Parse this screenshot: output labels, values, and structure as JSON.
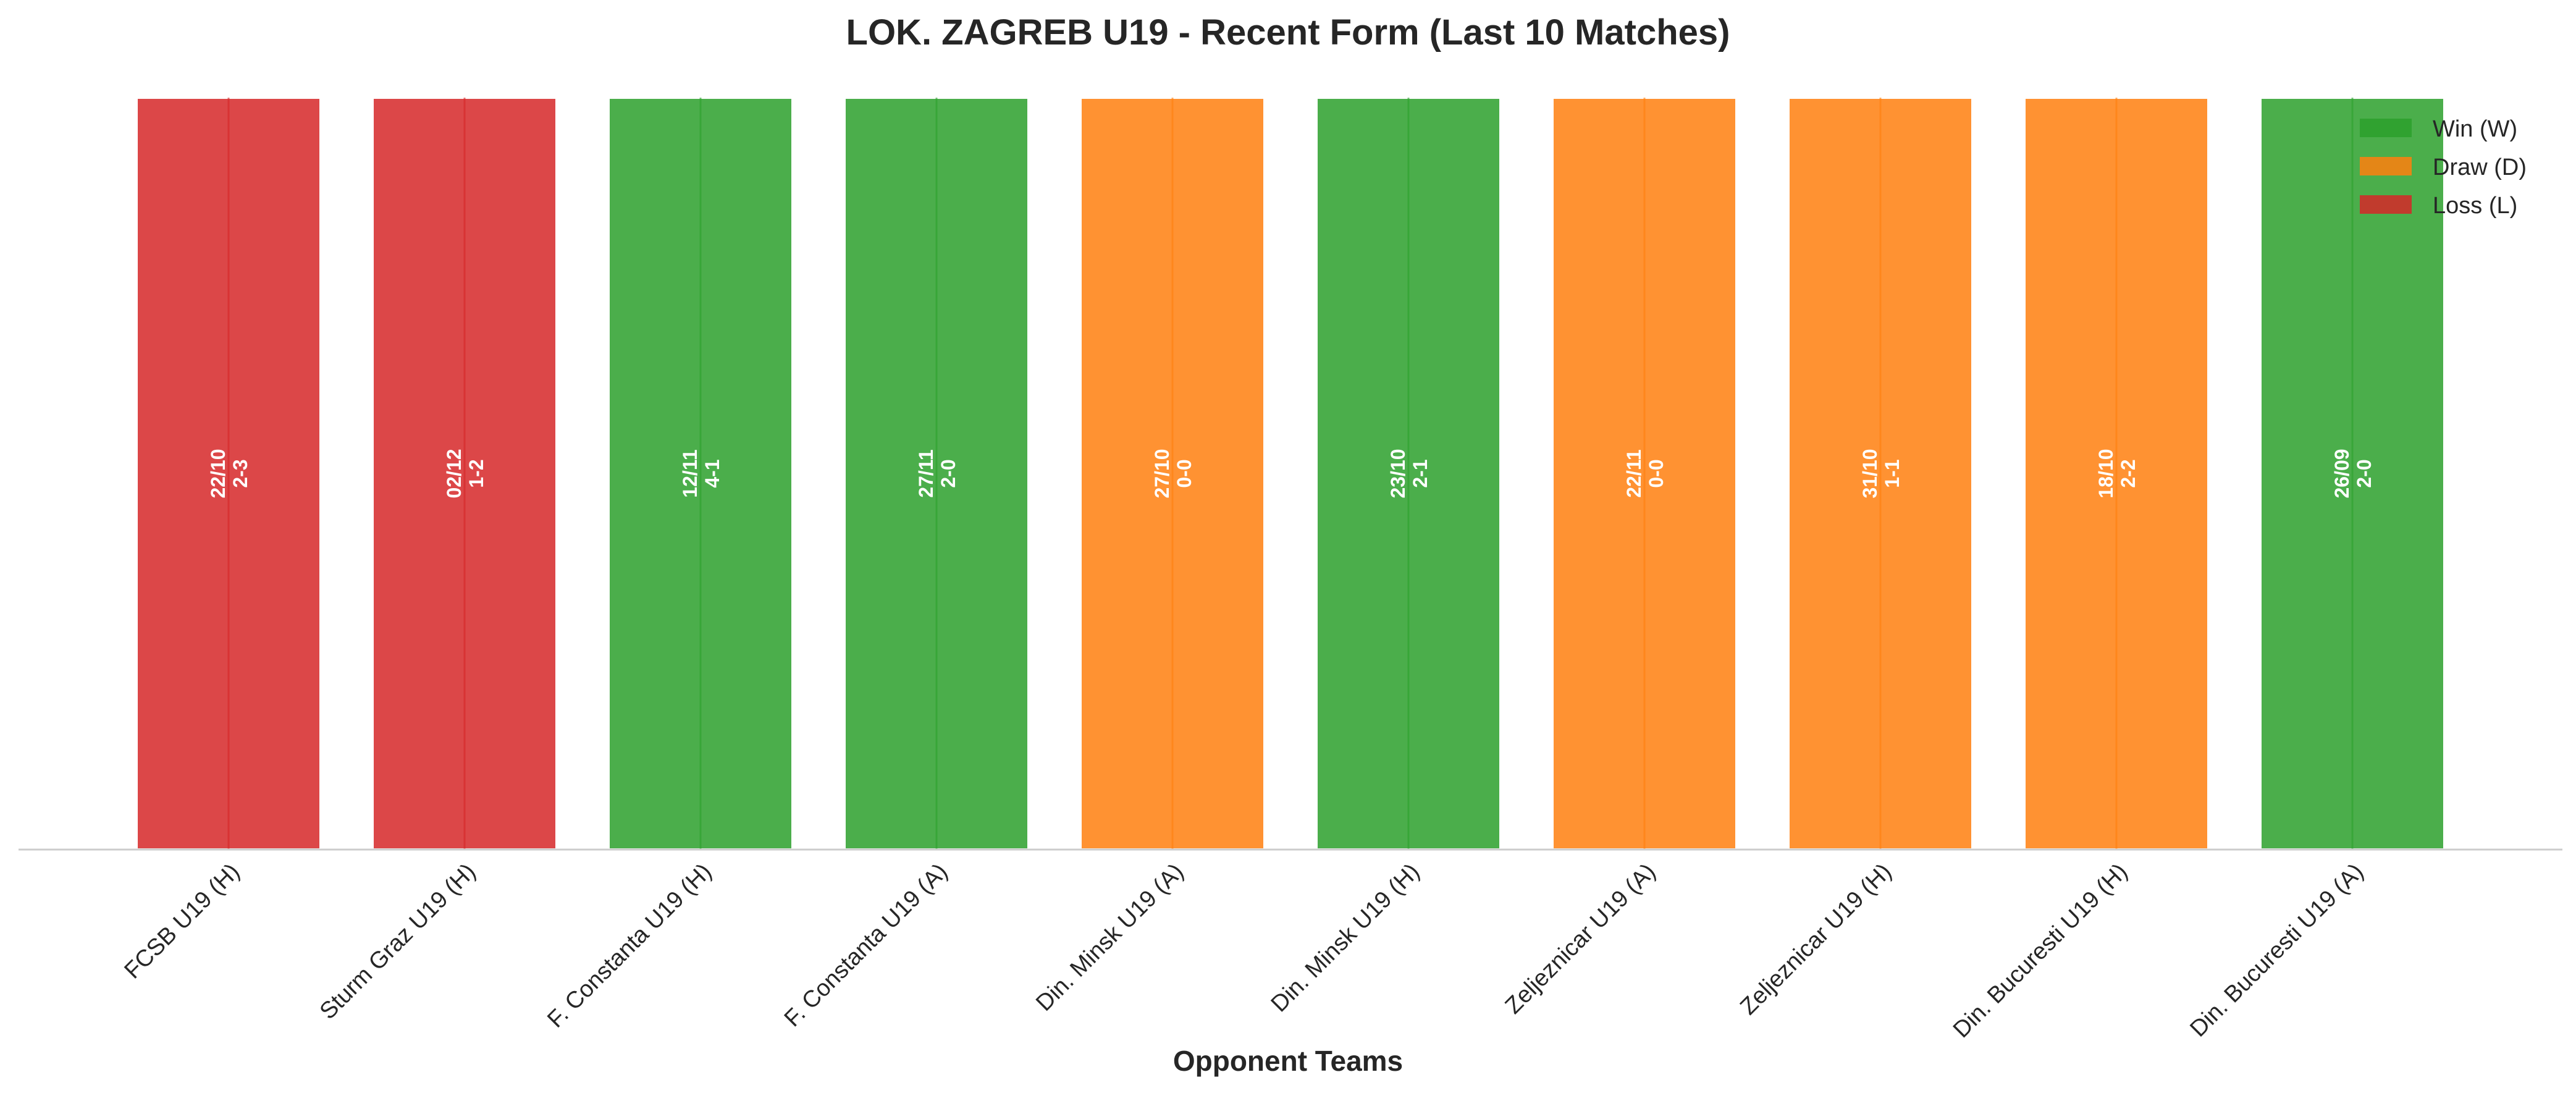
{
  "chart_data": {
    "type": "bar",
    "title": "LOK. ZAGREB U19 - Recent Form (Last 10 Matches)",
    "xlabel": "Opponent Teams",
    "ylabel": "",
    "ylim": [
      0,
      1
    ],
    "grid": false,
    "legend_position": "top-right",
    "colors": {
      "W": "#2ca02c",
      "D": "#ff7f0e",
      "L": "#d62728"
    },
    "legend": [
      {
        "key": "W",
        "label": "Win (W)"
      },
      {
        "key": "D",
        "label": "Draw (D)"
      },
      {
        "key": "L",
        "label": "Loss (L)"
      }
    ],
    "categories": [
      "FCSB U19 (H)",
      "Sturm Graz U19 (H)",
      "F. Constanta U19 (H)",
      "F. Constanta U19 (A)",
      "Din. Minsk U19 (A)",
      "Din. Minsk U19 (H)",
      "Zeljeznicar U19 (A)",
      "Zeljeznicar U19 (H)",
      "Din. Bucuresti U19 (H)",
      "Din. Bucuresti U19 (A)"
    ],
    "values": [
      1,
      1,
      1,
      1,
      1,
      1,
      1,
      1,
      1,
      1
    ],
    "results": [
      "L",
      "L",
      "W",
      "W",
      "D",
      "W",
      "D",
      "D",
      "D",
      "W"
    ],
    "dates": [
      "22/10",
      "02/12",
      "12/11",
      "27/11",
      "27/10",
      "23/10",
      "22/11",
      "31/10",
      "18/10",
      "26/09"
    ],
    "scores": [
      "2-3",
      "1-2",
      "4-1",
      "2-0",
      "0-0",
      "2-1",
      "0-0",
      "1-1",
      "2-2",
      "2-0"
    ]
  }
}
